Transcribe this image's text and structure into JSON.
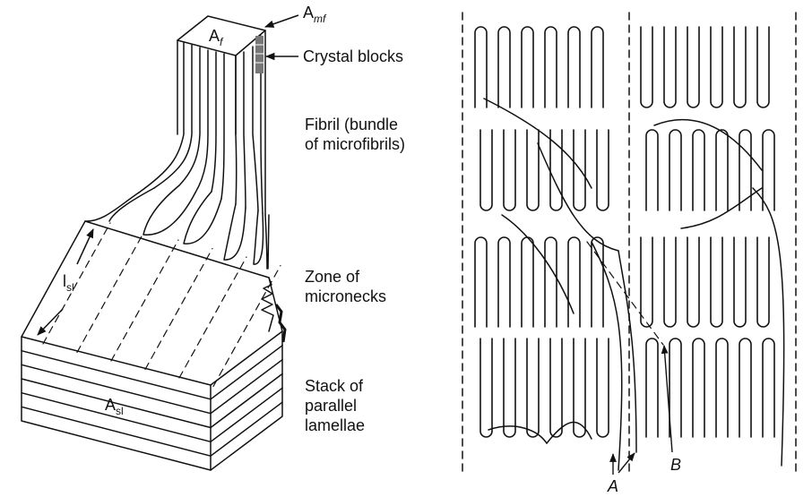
{
  "left_panel": {
    "symbols": {
      "fibril_area": "A",
      "fibril_area_sub": "f",
      "microfibril_area": "A",
      "microfibril_area_sub": "mf",
      "lamella_length": "l",
      "lamella_length_sub": "sl",
      "lamella_area": "A",
      "lamella_area_sub": "sl"
    },
    "labels": {
      "crystal_blocks": "Crystal blocks",
      "fibril": [
        "Fibril (bundle",
        "of microfibrils)"
      ],
      "micronecks": [
        "Zone of",
        "micronecks"
      ],
      "stack": [
        "Stack of",
        "parallel",
        "lamellae"
      ]
    }
  },
  "right_panel": {
    "label_a": "A",
    "label_b": "B"
  },
  "colors": {
    "ink": "#111111",
    "background": "#ffffff",
    "crystal_block": "#777777"
  }
}
